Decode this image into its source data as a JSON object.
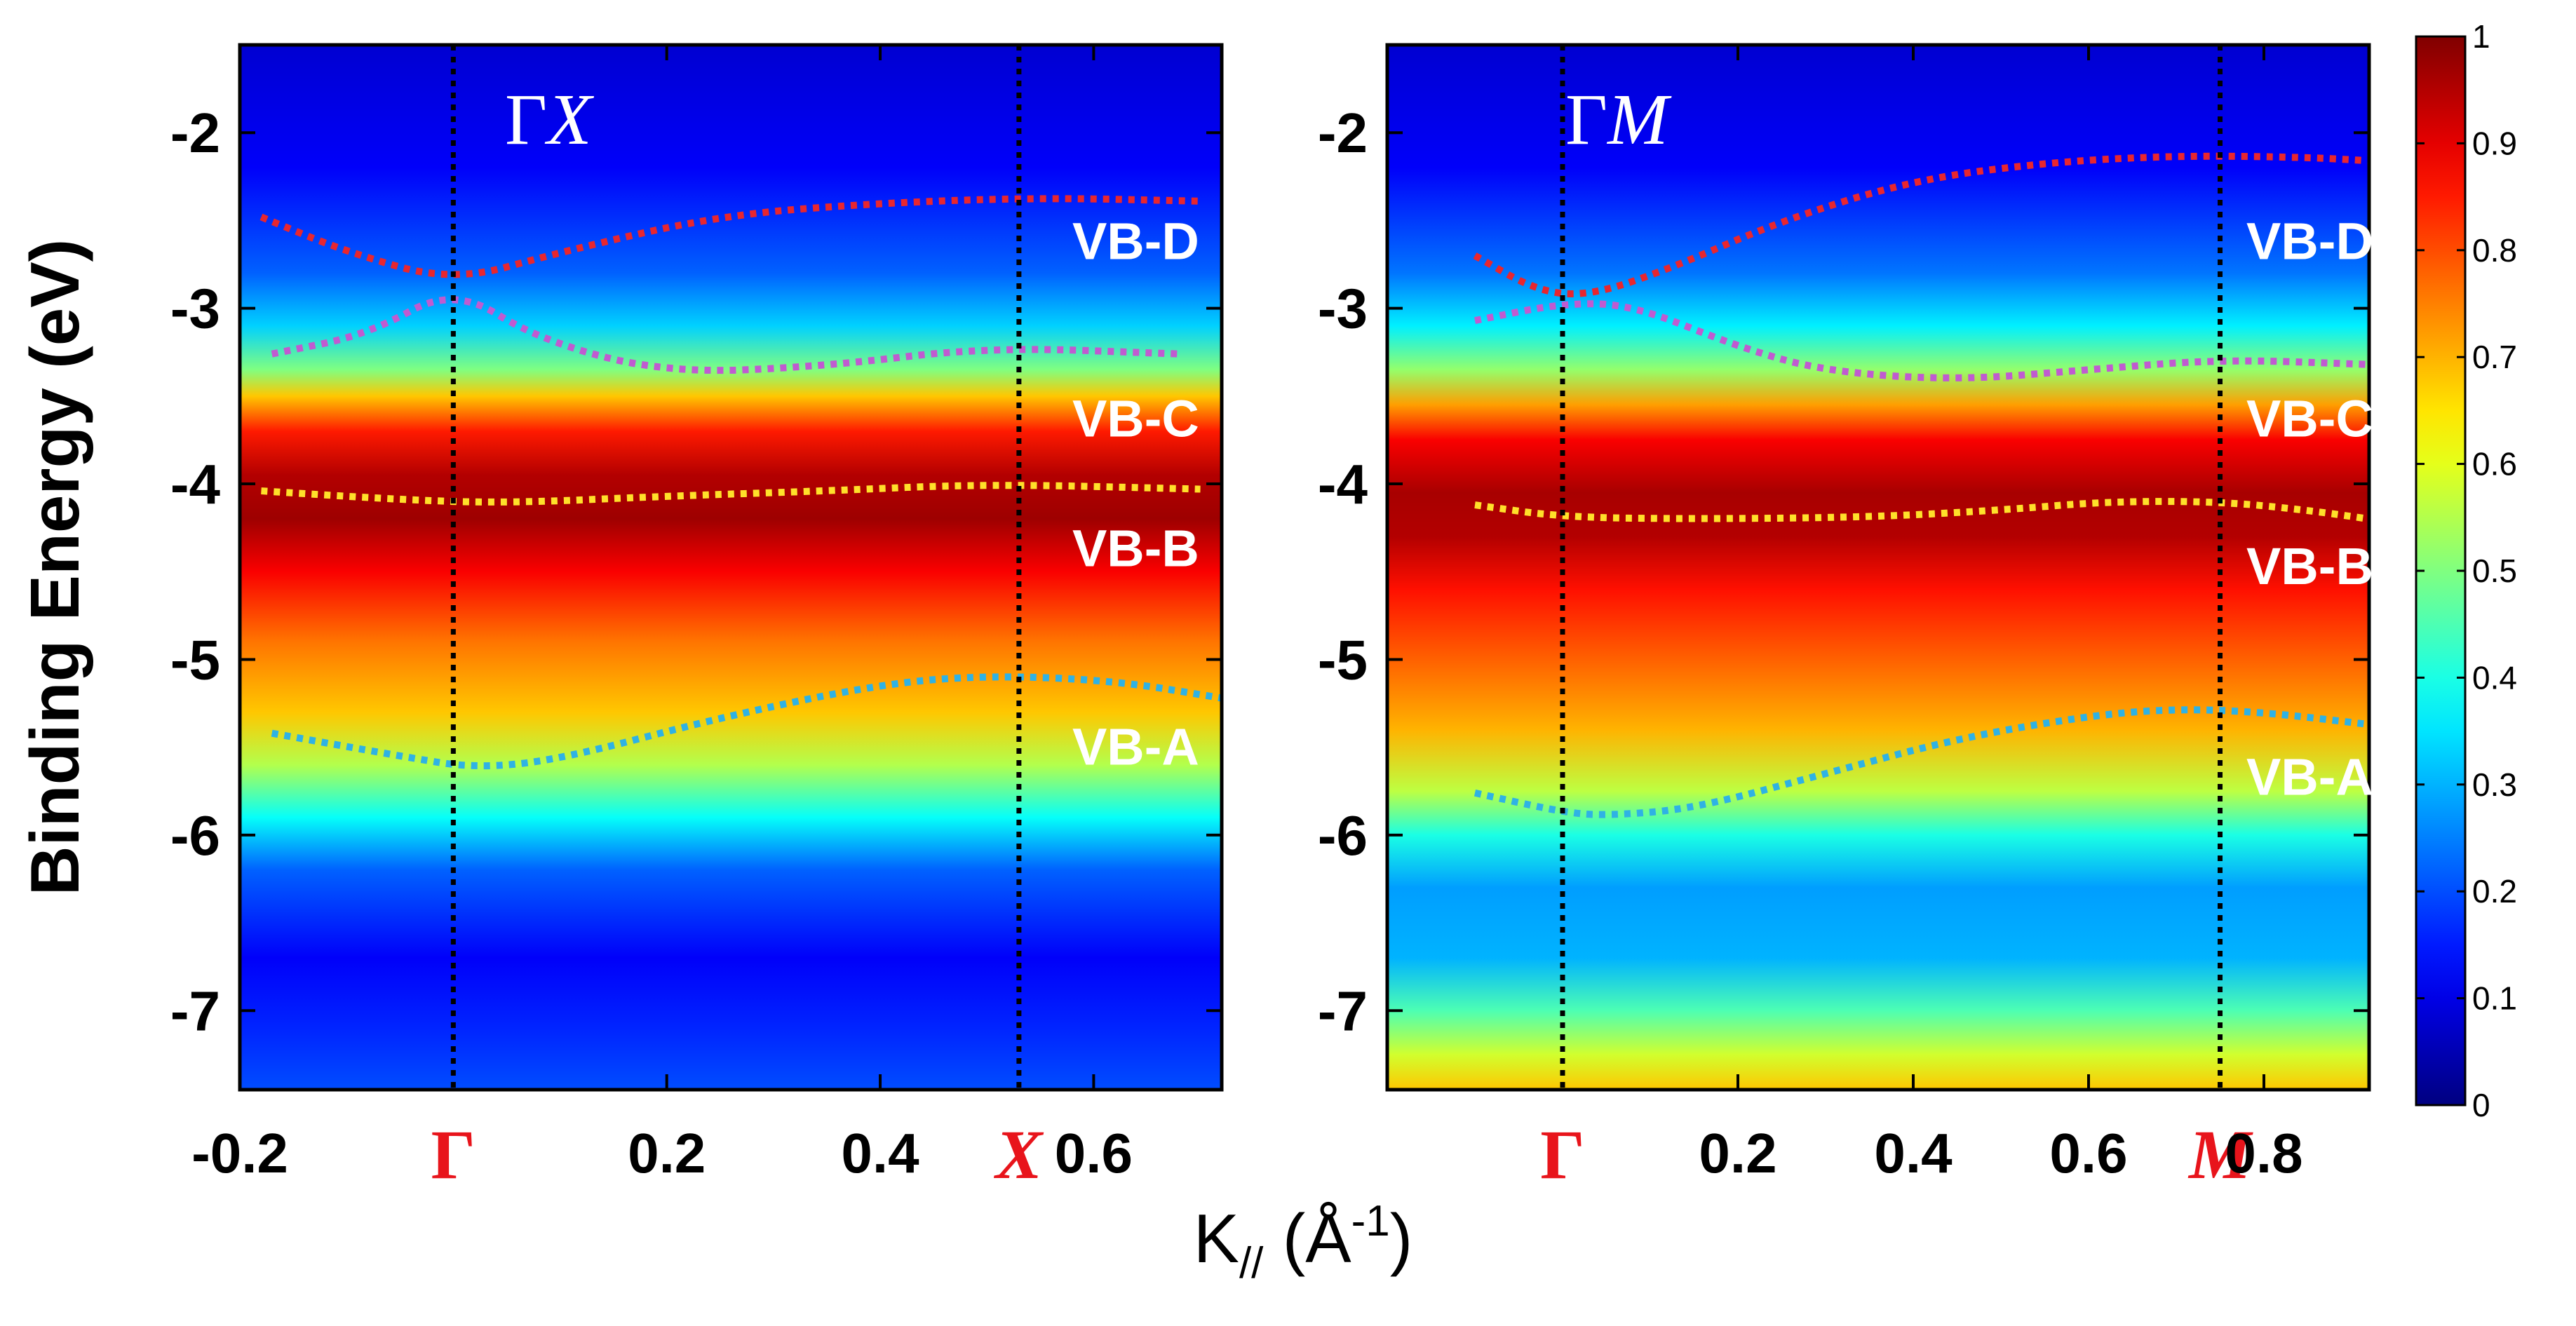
{
  "chart_data": [
    {
      "type": "heatmap",
      "title": "ΓX",
      "title_parts": {
        "gamma": "Γ",
        "point": "X"
      },
      "xlabel": "K// (Å-1)",
      "xlabel_parts": {
        "base": "K",
        "sub": "//",
        "open": " (Å",
        "sup": "-1",
        "close": ")"
      },
      "ylabel": "Binding Energy (eV)",
      "xlim": [
        -0.2,
        0.72
      ],
      "ylim": [
        -7.45,
        -1.5
      ],
      "x_ticks": [
        -0.2,
        0.2,
        0.4,
        0.6
      ],
      "x_tick_labels": [
        "-0.2",
        "0.2",
        "0.4",
        "0.6"
      ],
      "y_ticks": [
        -2,
        -3,
        -4,
        -5,
        -6,
        -7
      ],
      "y_tick_labels": [
        "-2",
        "-3",
        "-4",
        "-5",
        "-6",
        "-7"
      ],
      "high_symmetry": [
        {
          "label": "Γ",
          "x": 0.0
        },
        {
          "label": "X",
          "x": 0.53
        }
      ],
      "intensity_profile": [
        {
          "e": -1.5,
          "v": 0.08
        },
        {
          "e": -2.2,
          "v": 0.12
        },
        {
          "e": -2.8,
          "v": 0.22
        },
        {
          "e": -3.1,
          "v": 0.33
        },
        {
          "e": -3.35,
          "v": 0.5
        },
        {
          "e": -3.5,
          "v": 0.68
        },
        {
          "e": -3.7,
          "v": 0.85
        },
        {
          "e": -3.95,
          "v": 0.95
        },
        {
          "e": -4.2,
          "v": 0.97
        },
        {
          "e": -4.5,
          "v": 0.88
        },
        {
          "e": -4.9,
          "v": 0.76
        },
        {
          "e": -5.3,
          "v": 0.68
        },
        {
          "e": -5.6,
          "v": 0.55
        },
        {
          "e": -5.9,
          "v": 0.38
        },
        {
          "e": -6.2,
          "v": 0.22
        },
        {
          "e": -6.7,
          "v": 0.12
        },
        {
          "e": -7.1,
          "v": 0.16
        },
        {
          "e": -7.45,
          "v": 0.2
        }
      ],
      "bands": [
        {
          "name": "VB-D",
          "color": "#e8262f",
          "label_at": [
            0.58,
            -2.72
          ],
          "points": [
            [
              -0.18,
              -2.48
            ],
            [
              -0.1,
              -2.68
            ],
            [
              0.0,
              -2.85
            ],
            [
              0.1,
              -2.68
            ],
            [
              0.25,
              -2.47
            ],
            [
              0.4,
              -2.4
            ],
            [
              0.55,
              -2.37
            ],
            [
              0.7,
              -2.39
            ]
          ]
        },
        {
          "name": "VB-C",
          "color": "#c05bd0",
          "label_at": [
            0.58,
            -3.73
          ],
          "points": [
            [
              -0.17,
              -3.26
            ],
            [
              -0.08,
              -3.15
            ],
            [
              0.0,
              -2.88
            ],
            [
              0.08,
              -3.18
            ],
            [
              0.2,
              -3.37
            ],
            [
              0.35,
              -3.33
            ],
            [
              0.5,
              -3.22
            ],
            [
              0.68,
              -3.26
            ]
          ]
        },
        {
          "name": "VB-B",
          "color": "#ffe02a",
          "label_at": [
            0.58,
            -4.47
          ],
          "points": [
            [
              -0.18,
              -4.04
            ],
            [
              -0.05,
              -4.09
            ],
            [
              0.05,
              -4.11
            ],
            [
              0.2,
              -4.07
            ],
            [
              0.35,
              -4.04
            ],
            [
              0.5,
              -4.0
            ],
            [
              0.7,
              -4.03
            ]
          ]
        },
        {
          "name": "VB-A",
          "color": "#2fb2e4",
          "label_at": [
            0.58,
            -5.6
          ],
          "points": [
            [
              -0.17,
              -5.42
            ],
            [
              -0.05,
              -5.55
            ],
            [
              0.02,
              -5.62
            ],
            [
              0.1,
              -5.57
            ],
            [
              0.25,
              -5.33
            ],
            [
              0.4,
              -5.14
            ],
            [
              0.5,
              -5.09
            ],
            [
              0.62,
              -5.12
            ],
            [
              0.72,
              -5.22
            ]
          ]
        }
      ]
    },
    {
      "type": "heatmap",
      "title": "ΓM",
      "title_parts": {
        "gamma": "Γ",
        "point": "M"
      },
      "xlim": [
        -0.2,
        0.92
      ],
      "ylim": [
        -7.45,
        -1.5
      ],
      "x_ticks": [
        0.2,
        0.4,
        0.6,
        0.8
      ],
      "x_tick_labels": [
        "0.2",
        "0.4",
        "0.6",
        "0.8"
      ],
      "y_ticks": [
        -2,
        -3,
        -4,
        -5,
        -6,
        -7
      ],
      "y_tick_labels": [
        "-2",
        "-3",
        "-4",
        "-5",
        "-6",
        "-7"
      ],
      "high_symmetry": [
        {
          "label": "Γ",
          "x": 0.0
        },
        {
          "label": "M",
          "x": 0.75
        }
      ],
      "intensity_profile": [
        {
          "e": -1.5,
          "v": 0.08
        },
        {
          "e": -2.2,
          "v": 0.12
        },
        {
          "e": -2.8,
          "v": 0.24
        },
        {
          "e": -3.1,
          "v": 0.36
        },
        {
          "e": -3.35,
          "v": 0.52
        },
        {
          "e": -3.55,
          "v": 0.72
        },
        {
          "e": -3.75,
          "v": 0.88
        },
        {
          "e": -4.05,
          "v": 0.96
        },
        {
          "e": -4.3,
          "v": 0.95
        },
        {
          "e": -4.6,
          "v": 0.86
        },
        {
          "e": -5.0,
          "v": 0.78
        },
        {
          "e": -5.4,
          "v": 0.7
        },
        {
          "e": -5.75,
          "v": 0.56
        },
        {
          "e": -6.0,
          "v": 0.4
        },
        {
          "e": -6.3,
          "v": 0.28
        },
        {
          "e": -6.7,
          "v": 0.3
        },
        {
          "e": -7.0,
          "v": 0.45
        },
        {
          "e": -7.25,
          "v": 0.58
        },
        {
          "e": -7.45,
          "v": 0.68
        }
      ],
      "bands": [
        {
          "name": "VB-D",
          "color": "#e8262f",
          "label_at": [
            0.78,
            -2.72
          ],
          "points": [
            [
              -0.1,
              -2.7
            ],
            [
              -0.03,
              -2.9
            ],
            [
              0.03,
              -2.93
            ],
            [
              0.12,
              -2.78
            ],
            [
              0.25,
              -2.5
            ],
            [
              0.4,
              -2.27
            ],
            [
              0.55,
              -2.17
            ],
            [
              0.7,
              -2.13
            ],
            [
              0.85,
              -2.14
            ],
            [
              0.92,
              -2.16
            ]
          ]
        },
        {
          "name": "VB-C",
          "color": "#c05bd0",
          "label_at": [
            0.78,
            -3.73
          ],
          "points": [
            [
              -0.1,
              -3.07
            ],
            [
              0.0,
              -2.97
            ],
            [
              0.08,
              -2.98
            ],
            [
              0.2,
              -3.22
            ],
            [
              0.3,
              -3.36
            ],
            [
              0.45,
              -3.41
            ],
            [
              0.6,
              -3.35
            ],
            [
              0.75,
              -3.29
            ],
            [
              0.92,
              -3.32
            ]
          ]
        },
        {
          "name": "VB-B",
          "color": "#ffe02a",
          "label_at": [
            0.78,
            -4.57
          ],
          "points": [
            [
              -0.1,
              -4.12
            ],
            [
              0.0,
              -4.19
            ],
            [
              0.15,
              -4.2
            ],
            [
              0.35,
              -4.19
            ],
            [
              0.5,
              -4.15
            ],
            [
              0.62,
              -4.1
            ],
            [
              0.75,
              -4.1
            ],
            [
              0.85,
              -4.15
            ],
            [
              0.92,
              -4.2
            ]
          ]
        },
        {
          "name": "VB-A",
          "color": "#2fb2e4",
          "label_at": [
            0.78,
            -5.77
          ],
          "points": [
            [
              -0.1,
              -5.76
            ],
            [
              0.0,
              -5.87
            ],
            [
              0.05,
              -5.89
            ],
            [
              0.15,
              -5.85
            ],
            [
              0.3,
              -5.65
            ],
            [
              0.45,
              -5.45
            ],
            [
              0.6,
              -5.32
            ],
            [
              0.7,
              -5.28
            ],
            [
              0.8,
              -5.3
            ],
            [
              0.92,
              -5.37
            ]
          ]
        }
      ]
    }
  ],
  "colorbar": {
    "colormap": "jet",
    "min": 0,
    "max": 1,
    "ticks": [
      "0",
      "0.1",
      "0.2",
      "0.3",
      "0.4",
      "0.5",
      "0.6",
      "0.7",
      "0.8",
      "0.9",
      "1"
    ]
  }
}
